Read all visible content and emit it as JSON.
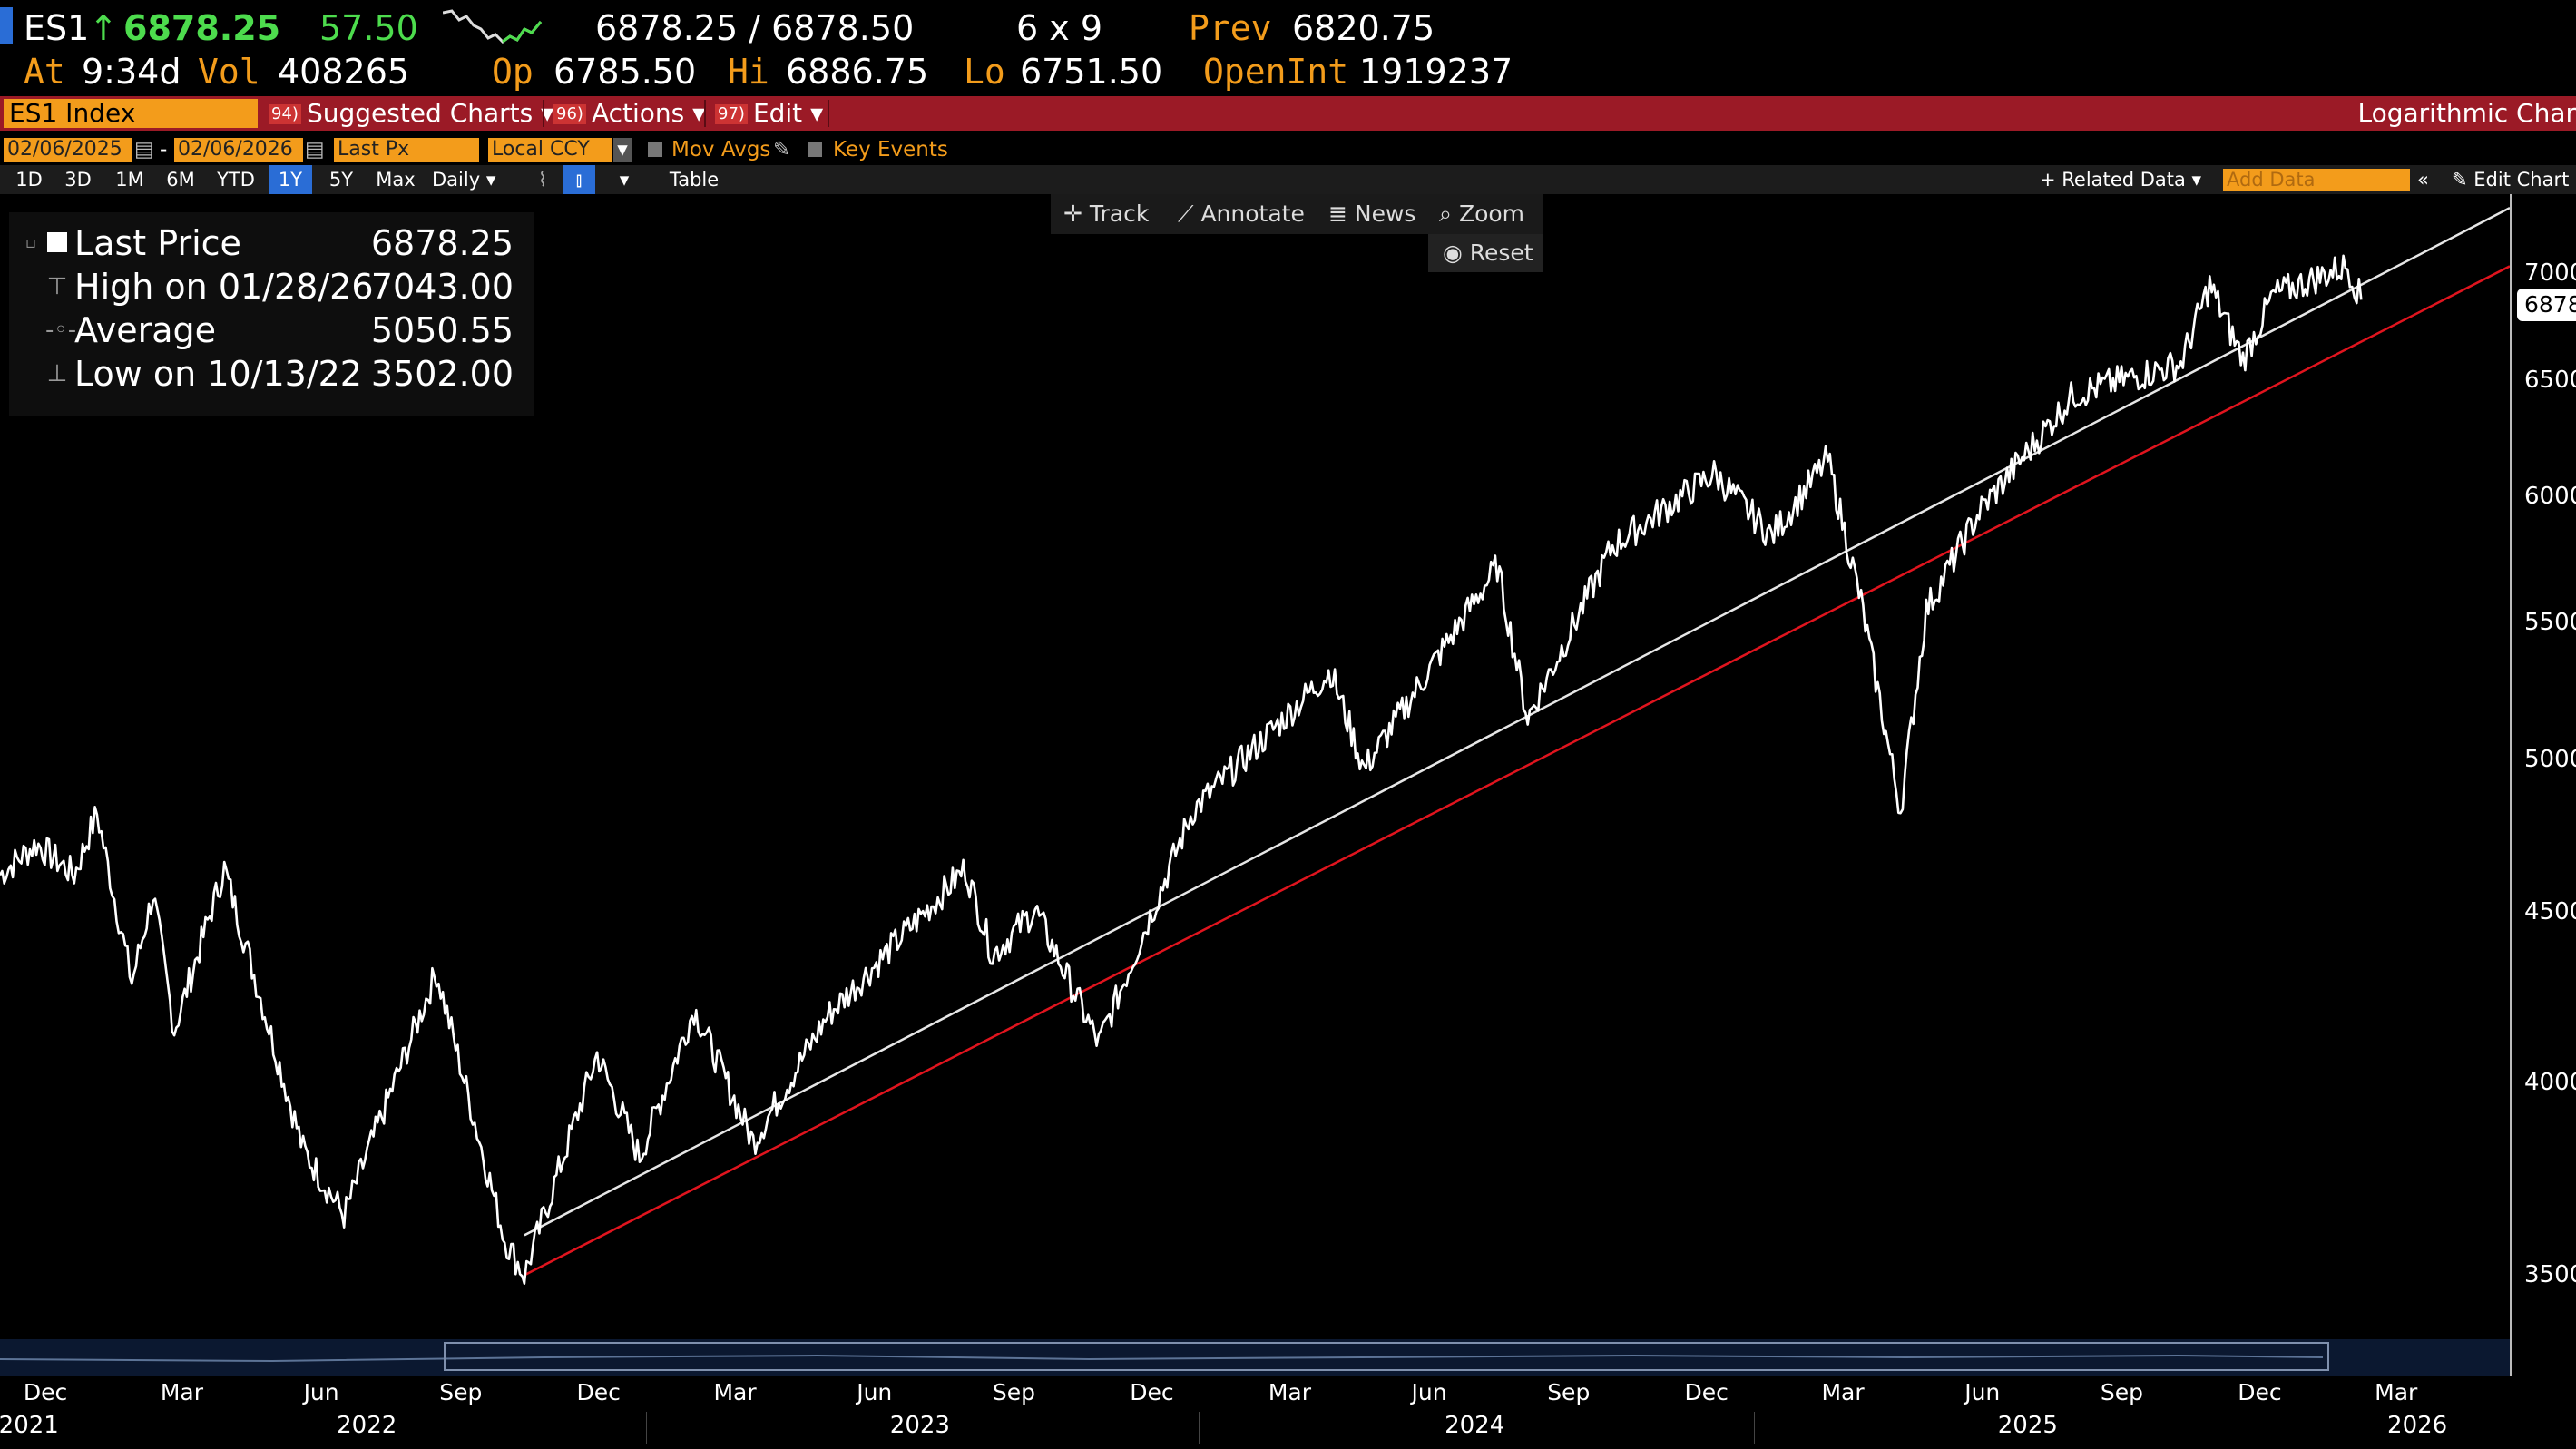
{
  "quote": {
    "ticker": "ES1",
    "arrow": "↑",
    "last": "6878.25",
    "change": "57.50",
    "bid_ask": "6878.25 / 6878.50",
    "size": "6 x 9",
    "prev_label": "Prev",
    "prev": "6820.75",
    "time_label": "At",
    "time": "9:34d",
    "vol_label": "Vol",
    "vol": "408265",
    "open_label": "Op",
    "open": "6785.50",
    "high_label": "Hi",
    "high": "6886.75",
    "low_label": "Lo",
    "low": "6751.50",
    "oi_label": "OpenInt",
    "oi": "1919237"
  },
  "menubar": {
    "security": "ES1 Index",
    "suggested_num": "94)",
    "suggested": "Suggested Charts",
    "actions_num": "96)",
    "actions": "Actions",
    "edit_num": "97)",
    "edit": "Edit",
    "chart_title": "Logarithmic Char"
  },
  "toolbar": {
    "start_date": "02/06/2025",
    "end_date": "02/06/2026",
    "field": "Last Px",
    "currency": "Local CCY",
    "mov_avgs": "Mov Avgs",
    "key_events": "Key Events",
    "periods": [
      "1D",
      "3D",
      "1M",
      "6M",
      "YTD",
      "1Y",
      "5Y",
      "Max"
    ],
    "active_period": "1Y",
    "frequency": "Daily",
    "table": "Table",
    "related_data": "+ Related Data",
    "add_data_placeholder": "Add Data",
    "edit_chart": "Edit Chart",
    "track": "Track",
    "annotate": "Annotate",
    "news": "News",
    "zoom": "Zoom",
    "reset": "Reset"
  },
  "legend": {
    "last_label": "Last Price",
    "last_value": "6878.25",
    "high_label": "High on 01/28/26",
    "high_value": "7043.00",
    "avg_label": "Average",
    "avg_value": "5050.55",
    "low_label": "Low on 10/13/22",
    "low_value": "3502.00"
  },
  "last_tag": "6878",
  "colors": {
    "background": "#000000",
    "price_line": "#ffffff",
    "trend_white": "#e6e6e6",
    "trend_red": "#e0141e",
    "accent_orange": "#f39c1b",
    "menubar_red": "#9b1a26",
    "up_green": "#4ddc4d"
  },
  "chart_data": {
    "type": "line",
    "scale": "log",
    "ylim": [
      3350,
      7400
    ],
    "yticks": [
      3500,
      4000,
      4500,
      5000,
      5500,
      6000,
      6500,
      7000
    ],
    "yticklabels": [
      "3500",
      "4000",
      "4500",
      "5000",
      "5500",
      "6000",
      "6500",
      "7000"
    ],
    "xlim": [
      "2021-11-01",
      "2026-05-15"
    ],
    "month_ticks": [
      {
        "date": "2021-12-01",
        "label": "Dec"
      },
      {
        "date": "2022-03-01",
        "label": "Mar"
      },
      {
        "date": "2022-06-01",
        "label": "Jun"
      },
      {
        "date": "2022-09-01",
        "label": "Sep"
      },
      {
        "date": "2022-12-01",
        "label": "Dec"
      },
      {
        "date": "2023-03-01",
        "label": "Mar"
      },
      {
        "date": "2023-06-01",
        "label": "Jun"
      },
      {
        "date": "2023-09-01",
        "label": "Sep"
      },
      {
        "date": "2023-12-01",
        "label": "Dec"
      },
      {
        "date": "2024-03-01",
        "label": "Mar"
      },
      {
        "date": "2024-06-01",
        "label": "Jun"
      },
      {
        "date": "2024-09-01",
        "label": "Sep"
      },
      {
        "date": "2024-12-01",
        "label": "Dec"
      },
      {
        "date": "2025-03-01",
        "label": "Mar"
      },
      {
        "date": "2025-06-01",
        "label": "Jun"
      },
      {
        "date": "2025-09-01",
        "label": "Sep"
      },
      {
        "date": "2025-12-01",
        "label": "Dec"
      },
      {
        "date": "2026-03-01",
        "label": "Mar"
      }
    ],
    "year_ticks": [
      {
        "date": "2021-11-20",
        "label": "2021"
      },
      {
        "date": "2022-07-01",
        "label": "2022"
      },
      {
        "date": "2023-07-01",
        "label": "2023"
      },
      {
        "date": "2024-07-01",
        "label": "2024"
      },
      {
        "date": "2025-07-01",
        "label": "2025"
      },
      {
        "date": "2026-03-15",
        "label": "2026"
      }
    ],
    "series": [
      {
        "dates": [
          "2021-11-01",
          "2021-11-25",
          "2021-12-20",
          "2022-01-04",
          "2022-01-27",
          "2022-02-10",
          "2022-02-24",
          "2022-03-29",
          "2022-05-20",
          "2022-06-16",
          "2022-08-16",
          "2022-09-30",
          "2022-10-13",
          "2022-11-30",
          "2022-12-28",
          "2023-02-02",
          "2023-03-13",
          "2023-05-01",
          "2023-07-31",
          "2023-08-18",
          "2023-09-15",
          "2023-10-27",
          "2023-12-28",
          "2024-03-28",
          "2024-04-19",
          "2024-07-16",
          "2024-08-05",
          "2024-09-30",
          "2024-12-06",
          "2025-01-13",
          "2025-02-19",
          "2025-03-13",
          "2025-04-08",
          "2025-04-25",
          "2025-05-30",
          "2025-07-31",
          "2025-08-29",
          "2025-10-10",
          "2025-10-29",
          "2025-11-20",
          "2025-12-10",
          "2026-01-28",
          "2026-02-06"
        ],
        "y": [
          4620,
          4720,
          4620,
          4820,
          4290,
          4560,
          4150,
          4640,
          3820,
          3650,
          4320,
          3590,
          3502,
          4080,
          3800,
          4210,
          3840,
          4190,
          4640,
          4370,
          4510,
          4110,
          4830,
          5320,
          4970,
          5720,
          5150,
          5800,
          6100,
          5840,
          6160,
          5580,
          4830,
          5550,
          5940,
          6440,
          6500,
          6580,
          6950,
          6600,
          6900,
          7043,
          6878.25
        ]
      }
    ],
    "trendlines": [
      {
        "color": "white",
        "start": {
          "date": "2022-10-13",
          "value": 3600
        },
        "end": {
          "date": "2026-05-15",
          "value": 7330
        }
      },
      {
        "color": "red",
        "start": {
          "date": "2022-10-13",
          "value": 3502
        },
        "end": {
          "date": "2026-05-15",
          "value": 7040
        }
      }
    ]
  }
}
